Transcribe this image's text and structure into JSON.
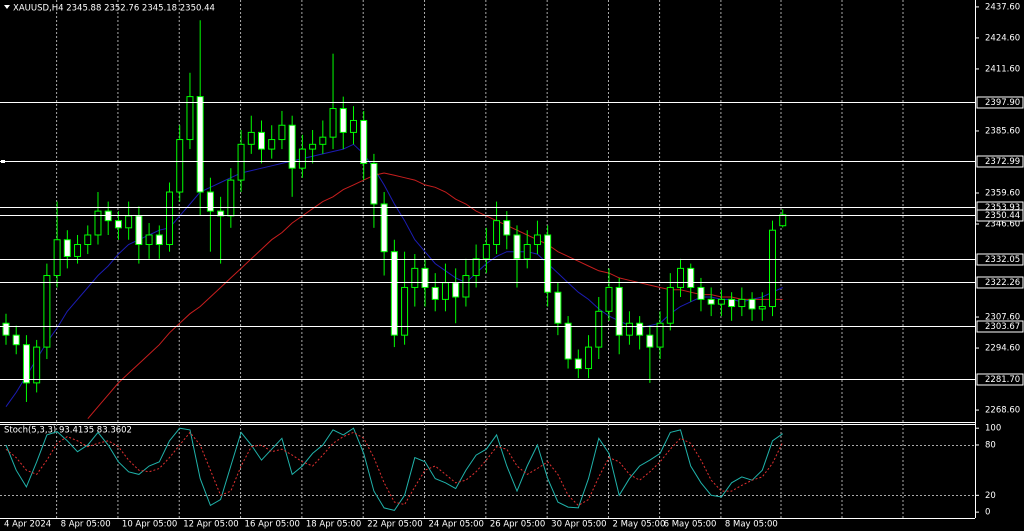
{
  "chart_data": [
    {
      "type": "candlestick",
      "title": "XAUUSD,H4 2345.88 2352.76 2345.18 2350.44",
      "categories": [
        "4 Apr 2024",
        null,
        null,
        null,
        null,
        "8 Apr 05:00",
        null,
        null,
        null,
        null,
        null,
        "10 Apr 05:00",
        null,
        null,
        null,
        null,
        null,
        "12 Apr 05:00",
        null,
        null,
        null,
        null,
        null,
        "16 Apr 05:00",
        null,
        null,
        null,
        null,
        null,
        "18 Apr 05:00",
        null,
        null,
        null,
        null,
        null,
        "22 Apr 05:00",
        null,
        null,
        null,
        null,
        null,
        "24 Apr 05:00",
        null,
        null,
        null,
        null,
        null,
        "26 Apr 05:00",
        null,
        null,
        null,
        null,
        null,
        "30 Apr 05:00",
        null,
        null,
        null,
        null,
        null,
        "2 May 05:00",
        null,
        null,
        null,
        null,
        "6 May 05:00",
        null,
        null,
        null,
        null,
        null,
        "8 May 05:00",
        null,
        null,
        null,
        null,
        null,
        null
      ],
      "open": [
        2305,
        2300,
        2296,
        2280,
        2295,
        2325,
        2340,
        2333,
        2338,
        2342,
        2352,
        2348,
        2345,
        2350,
        2338,
        2342,
        2338,
        2360,
        2382,
        2400,
        2360,
        2352,
        2350,
        2365,
        2380,
        2385,
        2378,
        2382,
        2388,
        2370,
        2378,
        2380,
        2383,
        2395,
        2385,
        2390,
        2372,
        2355,
        2335,
        2300,
        2320,
        2328,
        2320,
        2315,
        2322,
        2316,
        2325,
        2332,
        2338,
        2348,
        2342,
        2332,
        2338,
        2342,
        2318,
        2305,
        2290,
        2286,
        2295,
        2310,
        2320,
        2300,
        2305,
        2300,
        2295,
        2305,
        2320,
        2328,
        2320,
        2315,
        2313,
        2315,
        2312,
        2315,
        2311,
        2312,
        2345.88
      ],
      "high": [
        2309,
        2304,
        2300,
        2298,
        2330,
        2356,
        2344,
        2342,
        2346,
        2360,
        2356,
        2352,
        2356,
        2354,
        2347,
        2346,
        2364,
        2388,
        2410,
        2432,
        2366,
        2358,
        2370,
        2386,
        2392,
        2390,
        2388,
        2394,
        2392,
        2384,
        2386,
        2390,
        2418,
        2400,
        2396,
        2394,
        2376,
        2360,
        2340,
        2335,
        2334,
        2332,
        2326,
        2330,
        2328,
        2332,
        2338,
        2345,
        2356,
        2352,
        2346,
        2344,
        2348,
        2346,
        2322,
        2308,
        2294,
        2300,
        2316,
        2328,
        2324,
        2310,
        2308,
        2304,
        2310,
        2326,
        2332,
        2330,
        2324,
        2320,
        2319,
        2318,
        2320,
        2318,
        2318,
        2348,
        2352.76
      ],
      "low": [
        2296,
        2292,
        2272,
        2276,
        2290,
        2320,
        2328,
        2330,
        2334,
        2338,
        2342,
        2340,
        2340,
        2330,
        2332,
        2332,
        2335,
        2356,
        2378,
        2350,
        2335,
        2330,
        2345,
        2360,
        2376,
        2372,
        2374,
        2378,
        2358,
        2366,
        2372,
        2376,
        2378,
        2378,
        2380,
        2365,
        2345,
        2325,
        2295,
        2296,
        2312,
        2312,
        2310,
        2310,
        2305,
        2312,
        2320,
        2326,
        2334,
        2336,
        2320,
        2328,
        2334,
        2312,
        2300,
        2286,
        2282,
        2282,
        2290,
        2306,
        2292,
        2296,
        2294,
        2280,
        2290,
        2302,
        2316,
        2314,
        2310,
        2308,
        2308,
        2306,
        2308,
        2306,
        2306,
        2308,
        2345.18
      ],
      "close": [
        2300,
        2296,
        2280,
        2295,
        2325,
        2340,
        2333,
        2338,
        2342,
        2352,
        2348,
        2345,
        2350,
        2338,
        2342,
        2338,
        2360,
        2382,
        2400,
        2360,
        2352,
        2350,
        2365,
        2380,
        2385,
        2378,
        2382,
        2388,
        2370,
        2378,
        2380,
        2383,
        2395,
        2385,
        2390,
        2372,
        2355,
        2335,
        2300,
        2320,
        2328,
        2320,
        2315,
        2322,
        2316,
        2325,
        2332,
        2338,
        2348,
        2342,
        2332,
        2338,
        2342,
        2318,
        2305,
        2290,
        2286,
        2295,
        2310,
        2320,
        2300,
        2305,
        2300,
        2295,
        2305,
        2320,
        2328,
        2320,
        2315,
        2313,
        2315,
        2312,
        2315,
        2311,
        2312,
        2344,
        2350.44
      ],
      "candle_color": "#00ff00",
      "bull_fill": "#000000",
      "bear_fill": "#ffffff",
      "series": [
        {
          "color": "#1c1cb4",
          "values": [
            2270,
            2276,
            2283,
            2290,
            2297,
            2303,
            2310,
            2315,
            2320,
            2325,
            2329,
            2334,
            2338,
            2340,
            2342,
            2344,
            2345,
            2350,
            2355,
            2360,
            2362,
            2364,
            2366,
            2368,
            2369,
            2370,
            2371,
            2372,
            2373,
            2374,
            2375,
            2376,
            2377,
            2378,
            2380,
            2376,
            2370,
            2363,
            2355,
            2348,
            2340,
            2335,
            2330,
            2327,
            2324,
            2322,
            2326,
            2330,
            2333,
            2335,
            2335,
            2335,
            2334,
            2330,
            2326,
            2322,
            2318,
            2315,
            2311,
            2308,
            2306,
            2304,
            2303,
            2304,
            2305,
            2309,
            2312,
            2314,
            2316,
            2316,
            2315,
            2315,
            2314,
            2315,
            2316,
            2318,
            2320
          ]
        },
        {
          "color": "#c81e1e",
          "values": [
            null,
            null,
            null,
            null,
            null,
            null,
            null,
            null,
            2265,
            2270,
            2275,
            2280,
            2284,
            2288,
            2292,
            2296,
            2301,
            2305,
            2309,
            2312,
            2316,
            2320,
            2324,
            2328,
            2332,
            2336,
            2340,
            2343,
            2347,
            2350,
            2353,
            2356,
            2358,
            2361,
            2363,
            2365,
            2367,
            2368,
            2367,
            2366,
            2365,
            2363,
            2362,
            2360,
            2357,
            2355,
            2352,
            2350,
            2348,
            2346,
            2344,
            2342,
            2340,
            2338,
            2335,
            2333,
            2331,
            2329,
            2327,
            2326,
            2324,
            2323,
            2322,
            2321,
            2320,
            2319,
            2319,
            2318,
            2317,
            2317,
            2316,
            2316,
            2315,
            2315,
            2315,
            2315,
            2315
          ]
        }
      ],
      "ylim": [
        2263.6,
        2440.5
      ],
      "yticks": [
        {
          "value": 2437.6,
          "label": "2437.60"
        },
        {
          "value": 2424.6,
          "label": "2424.60"
        },
        {
          "value": 2411.6,
          "label": "2411.60"
        },
        {
          "value": 2385.6,
          "label": "2385.60"
        },
        {
          "value": 2359.6,
          "label": "2359.60"
        },
        {
          "value": 2346.6,
          "label": "2346.60"
        },
        {
          "value": 2307.6,
          "label": "2307.60"
        },
        {
          "value": 2294.6,
          "label": "2294.60"
        },
        {
          "value": 2268.6,
          "label": "2268.60"
        }
      ],
      "levels": [
        {
          "value": 2397.9,
          "label": "2397.90"
        },
        {
          "value": 2372.99,
          "label": "2372.99"
        },
        {
          "value": 2353.93,
          "label": "2353.93"
        },
        {
          "value": 2350.44,
          "label": "2350.44"
        },
        {
          "value": 2332.05,
          "label": "2332.05"
        },
        {
          "value": 2322.26,
          "label": "2322.26"
        },
        {
          "value": 2303.67,
          "label": "2303.67"
        },
        {
          "value": 2281.7,
          "label": "2281.70"
        }
      ]
    },
    {
      "type": "line",
      "title": "Stoch(5,3,3) 93.4135 83.3602",
      "series": [
        {
          "color": "#20b2aa",
          "dashed": false,
          "values": [
            80,
            50,
            30,
            60,
            92,
            96,
            85,
            72,
            80,
            95,
            80,
            60,
            48,
            45,
            55,
            60,
            85,
            100,
            98,
            40,
            8,
            15,
            55,
            95,
            80,
            62,
            75,
            88,
            45,
            55,
            70,
            80,
            98,
            92,
            100,
            70,
            25,
            5,
            2,
            20,
            65,
            60,
            40,
            35,
            28,
            50,
            68,
            75,
            92,
            55,
            25,
            55,
            80,
            40,
            12,
            6,
            5,
            40,
            88,
            70,
            20,
            40,
            55,
            62,
            70,
            95,
            98,
            55,
            35,
            20,
            18,
            35,
            42,
            38,
            50,
            85,
            93.4135
          ]
        },
        {
          "color": "#e03030",
          "dashed": true,
          "values": [
            75,
            65,
            50,
            45,
            62,
            82,
            90,
            85,
            78,
            82,
            85,
            78,
            62,
            50,
            48,
            52,
            65,
            80,
            95,
            80,
            50,
            20,
            25,
            55,
            78,
            80,
            72,
            75,
            68,
            60,
            55,
            68,
            82,
            90,
            95,
            88,
            65,
            35,
            12,
            9,
            30,
            50,
            55,
            45,
            35,
            38,
            48,
            62,
            78,
            75,
            55,
            45,
            52,
            60,
            45,
            20,
            8,
            15,
            42,
            65,
            60,
            45,
            38,
            48,
            60,
            75,
            88,
            82,
            62,
            38,
            25,
            25,
            32,
            38,
            42,
            58,
            83.3602
          ]
        }
      ],
      "ylim": [
        -7,
        105
      ],
      "yticks": [
        100,
        80,
        20,
        0
      ],
      "levels": [
        80,
        20
      ]
    }
  ]
}
